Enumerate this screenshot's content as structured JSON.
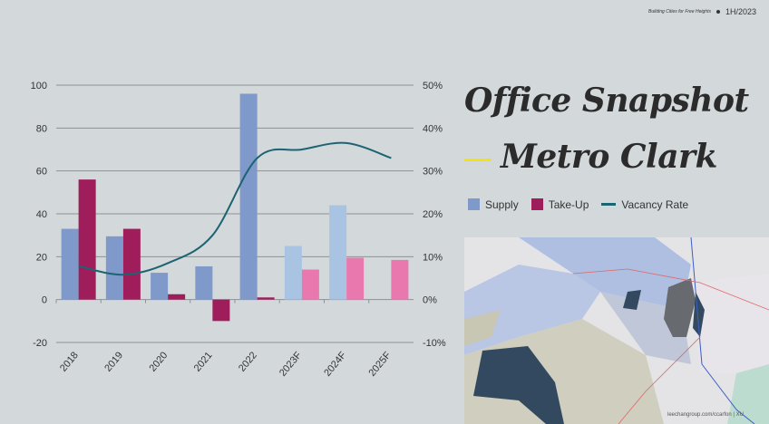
{
  "header": {
    "subtitle": "Building Cities for Free Heights",
    "period": "1H/2023"
  },
  "title": {
    "line1": "Office Snapshot",
    "line2": "Metro Clark"
  },
  "legend": [
    {
      "label": "Supply",
      "color": "#7f99cb"
    },
    {
      "label": "Take-Up",
      "color": "#9e1d5a"
    },
    {
      "label": "Vacancy Rate",
      "color": "#1d6473"
    }
  ],
  "map": {
    "attribution": "leechangroup.com/ccarfon | XU"
  },
  "chart_data": {
    "type": "bar",
    "categories": [
      "2018",
      "2019",
      "2020",
      "2021",
      "2022",
      "2023F",
      "2024F",
      "2025F"
    ],
    "series": [
      {
        "name": "Supply",
        "values": [
          33,
          29.5,
          12.5,
          15.5,
          96,
          25,
          44,
          null
        ],
        "color": "#7f99cb",
        "forecast_color": "#a9c3e3"
      },
      {
        "name": "Take-Up",
        "values": [
          56,
          33,
          2.5,
          -10,
          1,
          14,
          19.5,
          18.5
        ],
        "color": "#9e1d5a",
        "forecast_color": "#e878ae"
      },
      {
        "name": "Vacancy Rate",
        "type": "line",
        "axis": "right",
        "values": [
          7.8,
          5.8,
          8.5,
          15,
          33,
          35,
          36.5,
          33
        ],
        "color": "#1d6473"
      }
    ],
    "forecast_from": "2023F",
    "ylim": [
      -20,
      100
    ],
    "yticks": [
      "-20",
      "0",
      "20",
      "40",
      "60",
      "80",
      "100"
    ],
    "y2lim": [
      -10,
      50
    ],
    "y2ticks": [
      "-10%",
      "0%",
      "10%",
      "20%",
      "30%",
      "40%",
      "50%"
    ],
    "grid": true
  }
}
